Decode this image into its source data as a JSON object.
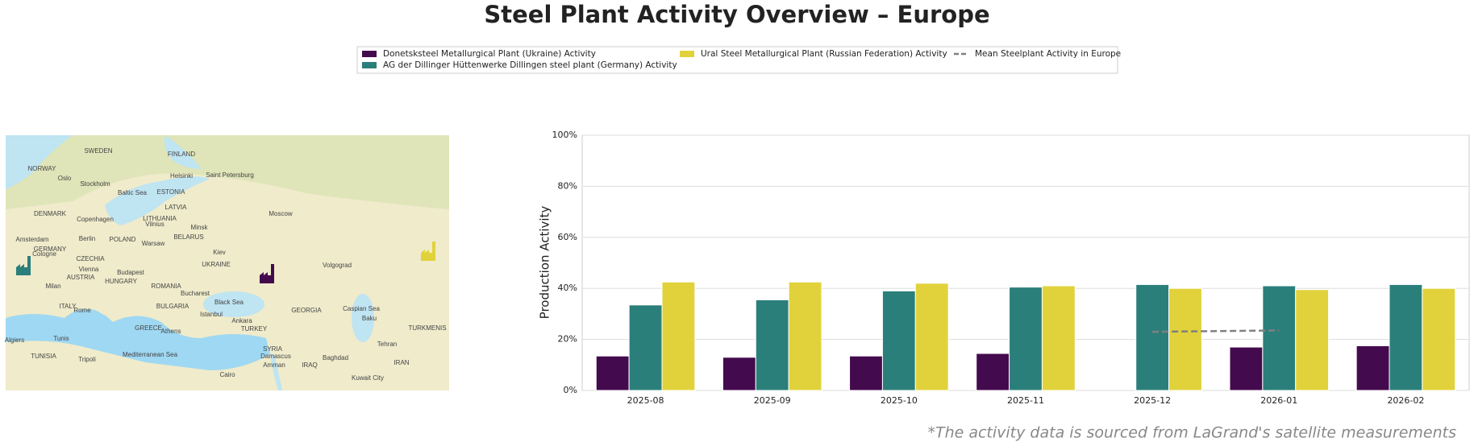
{
  "chart_data": {
    "type": "bar",
    "title": "Steel Plant Activity Overview – Europe",
    "y_label": "Production Activity",
    "footnote": "*The activity data is sourced from LaGrand's satellite measurements",
    "categories": [
      "2025-08",
      "2025-09",
      "2025-10",
      "2025-11",
      "2025-12",
      "2026-01",
      "2026-02"
    ],
    "series": [
      {
        "name": "Donetsksteel Metallurgical Plant (Ukraine) Activity",
        "color": "#440a4e",
        "values": [
          13.5,
          13,
          13.5,
          14.5,
          null,
          17,
          17.5
        ]
      },
      {
        "name": "AG der Dillinger Hüttenwerke Dillingen steel plant (Germany) Activity",
        "color": "#2b7f7b",
        "values": [
          33.5,
          35.5,
          39,
          40.5,
          41.5,
          41,
          41.5
        ]
      },
      {
        "name": "Ural Steel Metallurgical Plant (Russian Federation) Activity",
        "color": "#e1d23c",
        "values": [
          42.5,
          42.5,
          42,
          41,
          40,
          39.5,
          40
        ]
      },
      {
        "name": "Mean Steelplant Activity in Europe",
        "color": "#808080",
        "line": true,
        "dashed": true,
        "values": [
          null,
          null,
          null,
          null,
          23,
          23.5,
          null
        ]
      }
    ],
    "ylim": [
      0,
      100
    ],
    "yticks": [
      {
        "value": 0,
        "label": "0%"
      },
      {
        "value": 20,
        "label": "20%"
      },
      {
        "value": 40,
        "label": "40%"
      },
      {
        "value": 60,
        "label": "60%"
      },
      {
        "value": 80,
        "label": "80%"
      },
      {
        "value": 100,
        "label": "100%"
      }
    ],
    "grid": true,
    "map_labels": [
      "SWEDEN",
      "FINLAND",
      "NORWAY",
      "Oslo",
      "Stockholm",
      "Helsinki",
      "Saint Petersburg",
      "ESTONIA",
      "LATVIA",
      "Baltic Sea",
      "DENMARK",
      "Copenhagen",
      "LITHUANIA",
      "Vilnius",
      "Minsk",
      "Moscow",
      "Amsterdam",
      "Berlin",
      "POLAND",
      "BELARUS",
      "GERMANY",
      "Cologne",
      "Warsaw",
      "Kiev",
      "UKRAINE",
      "CZECHIA",
      "Vienna",
      "Budapest",
      "AUSTRIA",
      "HUNGARY",
      "Volgograd",
      "ROMANIA",
      "Milan",
      "Bucharest",
      "ITALY",
      "Rome",
      "BULGARIA",
      "Black Sea",
      "Istanbul",
      "GEORGIA",
      "Caspian Sea",
      "Baku",
      "Ankara",
      "TURKEY",
      "GREECE",
      "Athens",
      "Tunis",
      "Algiers",
      "TUNISIA",
      "Tripoli",
      "Mediterranean Sea",
      "SYRIA",
      "Damascus",
      "Baghdad",
      "IRAQ",
      "Tehran",
      "IRAN",
      "Amman",
      "Cairo",
      "Kuwait City",
      "TURKMENIS"
    ]
  }
}
